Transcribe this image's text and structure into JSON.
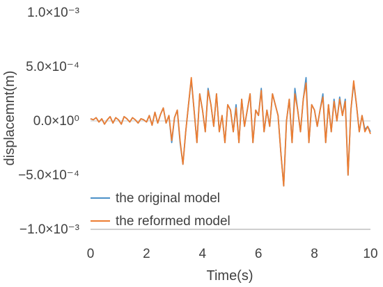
{
  "chart_data": {
    "type": "line",
    "xlabel": "Time(s)",
    "ylabel": "displacemnt(m)",
    "xlim": [
      0,
      10
    ],
    "ylim": [
      -0.001,
      0.001
    ],
    "x_ticks": [
      0,
      2,
      4,
      6,
      8,
      10
    ],
    "x_tick_labels": [
      "0",
      "2",
      "4",
      "6",
      "8",
      "10"
    ],
    "y_ticks": [
      0.001,
      0.0005,
      0,
      -0.0005,
      -0.001
    ],
    "y_tick_labels": [
      "1.0×10⁻³",
      "5.0×10⁻⁴",
      "0.0×10⁰",
      "−5.0×10⁻⁴",
      "−1.0×10⁻³"
    ],
    "grid": "horizontal zero line only",
    "legend_position": "bottom-left",
    "colors": {
      "original": "#4a90c8",
      "reformed": "#ed7d31",
      "zero_line": "#d9d9d9",
      "axis": "#bfbfbf",
      "text": "#404040"
    },
    "series": [
      {
        "name": "the original model",
        "x": [
          0.0,
          0.1,
          0.2,
          0.3,
          0.4,
          0.5,
          0.6,
          0.7,
          0.8,
          0.9,
          1.0,
          1.1,
          1.2,
          1.3,
          1.4,
          1.5,
          1.6,
          1.7,
          1.8,
          1.9,
          2.0,
          2.1,
          2.2,
          2.3,
          2.4,
          2.5,
          2.6,
          2.7,
          2.8,
          2.9,
          3.0,
          3.1,
          3.2,
          3.3,
          3.4,
          3.5,
          3.6,
          3.7,
          3.8,
          3.9,
          4.0,
          4.1,
          4.2,
          4.3,
          4.4,
          4.5,
          4.6,
          4.7,
          4.8,
          4.9,
          5.0,
          5.1,
          5.2,
          5.3,
          5.4,
          5.5,
          5.6,
          5.7,
          5.8,
          5.9,
          6.0,
          6.1,
          6.2,
          6.3,
          6.4,
          6.5,
          6.6,
          6.7,
          6.8,
          6.9,
          7.0,
          7.1,
          7.2,
          7.3,
          7.4,
          7.5,
          7.6,
          7.7,
          7.8,
          7.9,
          8.0,
          8.1,
          8.2,
          8.3,
          8.4,
          8.5,
          8.6,
          8.7,
          8.8,
          8.9,
          9.0,
          9.1,
          9.2,
          9.3,
          9.4,
          9.5,
          9.6,
          9.7,
          9.8,
          9.9,
          10.0
        ],
        "y": [
          2e-05,
          1e-05,
          3e-05,
          -1e-05,
          2e-05,
          -3e-05,
          1e-05,
          4e-05,
          -2e-05,
          3e-05,
          1e-05,
          -3e-05,
          4e-05,
          2e-05,
          -1e-05,
          3e-05,
          1e-05,
          -2e-05,
          2e-05,
          1e-05,
          -1e-05,
          5e-05,
          -4e-05,
          8e-05,
          -2e-05,
          6e-05,
          0.00012,
          -2e-05,
          5e-05,
          -0.0002,
          3e-05,
          0.0001,
          -0.0002,
          -0.0004,
          -0.0001,
          0.00015,
          0.00038,
          0.0001,
          -0.0002,
          0.00025,
          0.0001,
          -0.0001,
          0.0003,
          0.00015,
          -5e-05,
          0.00025,
          -0.0001,
          5e-05,
          -0.0002,
          0.00015,
          0.0001,
          -0.0001,
          0.00015,
          -0.0002,
          0.0002,
          -5e-05,
          0.0001,
          0.00025,
          -0.0002,
          0.0001,
          5e-05,
          0.0003,
          -0.0001,
          0.0001,
          -5e-05,
          0.00025,
          0.00015,
          5e-05,
          -0.0003,
          -0.0006,
          0.0,
          0.0002,
          -0.0002,
          0.0003,
          0.0001,
          -0.0001,
          0.0002,
          0.0004,
          -0.0002,
          0.00015,
          0.0001,
          -5e-05,
          0.0001,
          0.00025,
          -0.0002,
          0.00015,
          -0.0001,
          0.0002,
          0.0,
          0.00022,
          5e-05,
          0.0002,
          -0.0005,
          0.0001,
          0.00035,
          0.00015,
          -0.0001,
          5e-05,
          -8e-05,
          -5e-05,
          -0.0001
        ]
      },
      {
        "name": "the reformed model",
        "x": [
          0.0,
          0.1,
          0.2,
          0.3,
          0.4,
          0.5,
          0.6,
          0.7,
          0.8,
          0.9,
          1.0,
          1.1,
          1.2,
          1.3,
          1.4,
          1.5,
          1.6,
          1.7,
          1.8,
          1.9,
          2.0,
          2.1,
          2.2,
          2.3,
          2.4,
          2.5,
          2.6,
          2.7,
          2.8,
          2.9,
          3.0,
          3.1,
          3.2,
          3.3,
          3.4,
          3.5,
          3.6,
          3.7,
          3.8,
          3.9,
          4.0,
          4.1,
          4.2,
          4.3,
          4.4,
          4.5,
          4.6,
          4.7,
          4.8,
          4.9,
          5.0,
          5.1,
          5.2,
          5.3,
          5.4,
          5.5,
          5.6,
          5.7,
          5.8,
          5.9,
          6.0,
          6.1,
          6.2,
          6.3,
          6.4,
          6.5,
          6.6,
          6.7,
          6.8,
          6.9,
          7.0,
          7.1,
          7.2,
          7.3,
          7.4,
          7.5,
          7.6,
          7.7,
          7.8,
          7.9,
          8.0,
          8.1,
          8.2,
          8.3,
          8.4,
          8.5,
          8.6,
          8.7,
          8.8,
          8.9,
          9.0,
          9.1,
          9.2,
          9.3,
          9.4,
          9.5,
          9.6,
          9.7,
          9.8,
          9.9,
          10.0
        ],
        "y": [
          2e-05,
          1e-05,
          3e-05,
          -1e-05,
          2e-05,
          -3e-05,
          1e-05,
          4e-05,
          -2e-05,
          3e-05,
          1e-05,
          -3e-05,
          4e-05,
          2e-05,
          -1e-05,
          3e-05,
          1e-05,
          -2e-05,
          2e-05,
          1e-05,
          -1e-05,
          5e-05,
          -4e-05,
          8e-05,
          -2e-05,
          6e-05,
          0.00012,
          -2e-05,
          5e-05,
          -0.00018,
          3e-05,
          0.0001,
          -0.00018,
          -0.0004,
          -0.0001,
          0.00015,
          0.0004,
          0.0001,
          -0.0002,
          0.00025,
          0.0001,
          -0.0001,
          0.00028,
          0.00015,
          -5e-05,
          0.00025,
          -0.0001,
          5e-05,
          -0.0002,
          0.00015,
          0.0001,
          -0.0001,
          0.00012,
          -0.0002,
          0.0002,
          -5e-05,
          0.0001,
          0.00025,
          -0.0002,
          0.0001,
          5e-05,
          0.00028,
          -0.0001,
          0.0001,
          -5e-05,
          0.00025,
          0.00015,
          5e-05,
          -0.0003,
          -0.0006,
          0.0,
          0.0002,
          -0.0002,
          0.00025,
          0.0001,
          -0.0001,
          0.0002,
          0.00035,
          -0.0002,
          0.00015,
          0.0001,
          -5e-05,
          0.0001,
          0.00022,
          -0.0002,
          0.00015,
          -0.0001,
          0.00018,
          0.0,
          0.0002,
          5e-05,
          0.00018,
          -0.0005,
          0.0001,
          0.00037,
          0.00015,
          -0.0001,
          5e-05,
          -0.0001,
          -5e-05,
          -0.00012
        ]
      }
    ]
  }
}
